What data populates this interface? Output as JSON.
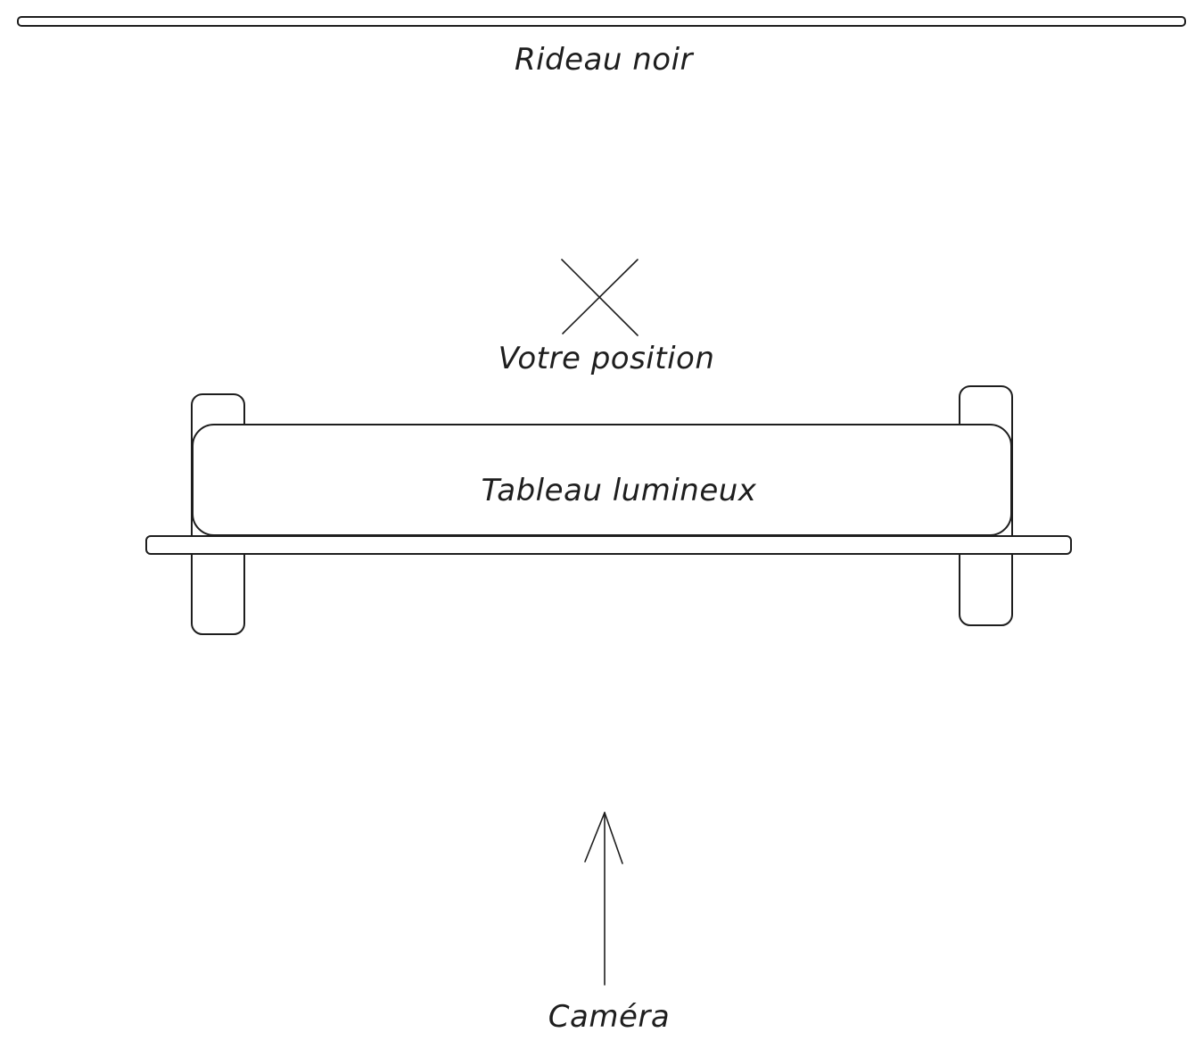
{
  "diagram": {
    "curtain_label": "Rideau noir",
    "position_label": "Votre position",
    "board_label": "Tableau lumineux",
    "camera_label": "Caméra"
  },
  "colors": {
    "stroke": "#1e1e1e",
    "background": "#ffffff"
  }
}
